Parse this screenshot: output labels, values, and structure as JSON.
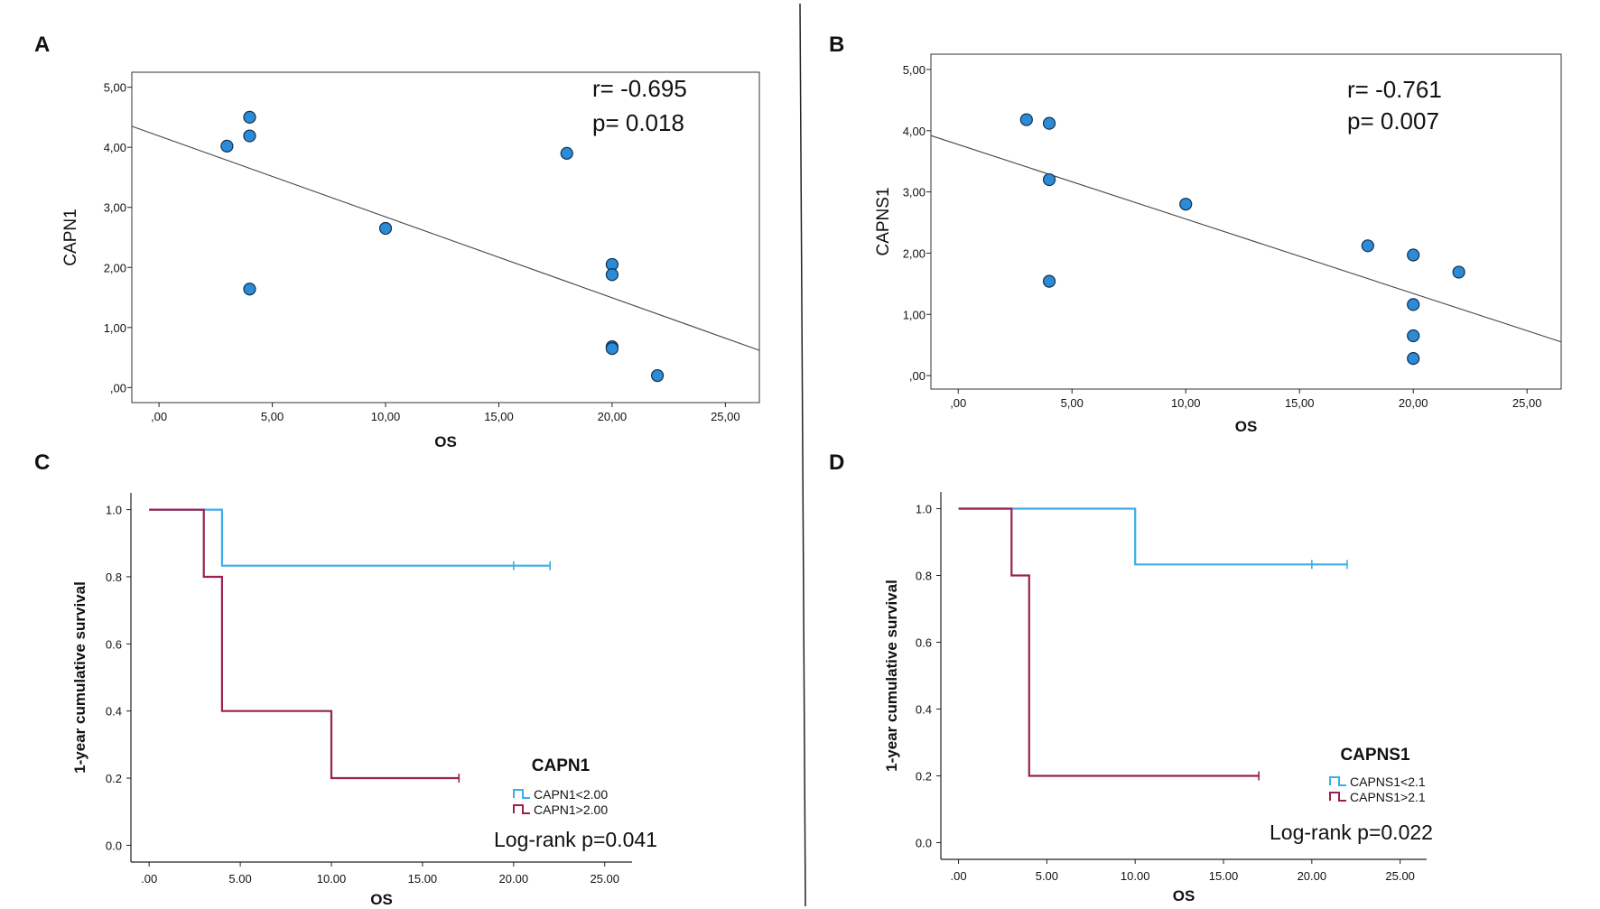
{
  "chart_data": [
    {
      "type": "scatter",
      "panel": "A",
      "xlabel": "OS",
      "ylabel": "CAPN1",
      "xticks": [
        ",00",
        "5,00",
        "10,00",
        "15,00",
        "20,00",
        "25,00"
      ],
      "yticks": [
        ",00",
        "1,00",
        "2,00",
        "3,00",
        "4,00",
        "5,00"
      ],
      "points": [
        [
          3,
          4.02
        ],
        [
          4,
          4.5
        ],
        [
          4,
          4.19
        ],
        [
          4,
          1.64
        ],
        [
          10,
          2.65
        ],
        [
          18,
          3.9
        ],
        [
          20,
          2.05
        ],
        [
          20,
          1.88
        ],
        [
          20,
          0.68
        ],
        [
          20,
          0.65
        ],
        [
          22,
          0.2
        ]
      ],
      "fit_line": [
        [
          -1.2,
          4.35
        ],
        [
          26.5,
          0.62
        ]
      ],
      "stats": {
        "r": "r= -0.695",
        "p": "p= 0.018"
      }
    },
    {
      "type": "scatter",
      "panel": "B",
      "xlabel": "OS",
      "ylabel": "CAPNS1",
      "xticks": [
        ",00",
        "5,00",
        "10,00",
        "15,00",
        "20,00",
        "25,00"
      ],
      "yticks": [
        ",00",
        "1,00",
        "2,00",
        "3,00",
        "4,00",
        "5,00"
      ],
      "points": [
        [
          3,
          4.18
        ],
        [
          4,
          4.12
        ],
        [
          4,
          3.2
        ],
        [
          4,
          1.54
        ],
        [
          10,
          2.8
        ],
        [
          18,
          2.12
        ],
        [
          20,
          1.97
        ],
        [
          22,
          1.69
        ],
        [
          20,
          1.16
        ],
        [
          20,
          0.65
        ],
        [
          20,
          0.28
        ]
      ],
      "fit_line": [
        [
          -1.2,
          3.92
        ],
        [
          26.5,
          0.55
        ]
      ],
      "stats": {
        "r": "r= -0.761",
        "p": "p= 0.007"
      }
    },
    {
      "type": "line",
      "subtype": "kaplan-meier",
      "panel": "C",
      "xlabel": "OS",
      "ylabel": "1-year cumulative survival",
      "xticks": [
        ".00",
        "5.00",
        "10.00",
        "15.00",
        "20.00",
        "25.00"
      ],
      "yticks": [
        "0.0",
        "0.2",
        "0.4",
        "0.6",
        "0.8",
        "1.0"
      ],
      "legend_title": "CAPN1",
      "series": [
        {
          "name": "CAPN1<2.00",
          "color": "#3aaee8",
          "steps": [
            [
              0,
              1.0
            ],
            [
              4,
              1.0
            ],
            [
              4,
              0.833
            ],
            [
              22,
              0.833
            ]
          ],
          "censored": [
            [
              20,
              0.833
            ],
            [
              22,
              0.833
            ]
          ]
        },
        {
          "name": "CAPN1>2.00",
          "color": "#99204f",
          "steps": [
            [
              0,
              1.0
            ],
            [
              3,
              1.0
            ],
            [
              3,
              0.8
            ],
            [
              4,
              0.8
            ],
            [
              4,
              0.4
            ],
            [
              10,
              0.4
            ],
            [
              10,
              0.2
            ],
            [
              17,
              0.2
            ]
          ],
          "censored": [
            [
              17,
              0.2
            ]
          ]
        }
      ],
      "annotation": "Log-rank p=0.041"
    },
    {
      "type": "line",
      "subtype": "kaplan-meier",
      "panel": "D",
      "xlabel": "OS",
      "ylabel": "1-year cumulative survival",
      "xticks": [
        ".00",
        "5.00",
        "10.00",
        "15.00",
        "20.00",
        "25.00"
      ],
      "yticks": [
        "0.0",
        "0.2",
        "0.4",
        "0.6",
        "0.8",
        "1.0"
      ],
      "legend_title": "CAPNS1",
      "series": [
        {
          "name": "CAPNS1<2.1",
          "color": "#3aaee8",
          "steps": [
            [
              0,
              1.0
            ],
            [
              10,
              1.0
            ],
            [
              10,
              0.833
            ],
            [
              22,
              0.833
            ]
          ],
          "censored": [
            [
              20,
              0.833
            ],
            [
              22,
              0.833
            ]
          ]
        },
        {
          "name": "CAPNS1>2.1",
          "color": "#99204f",
          "steps": [
            [
              0,
              1.0
            ],
            [
              3,
              1.0
            ],
            [
              3,
              0.8
            ],
            [
              4,
              0.8
            ],
            [
              4,
              0.2
            ],
            [
              17,
              0.2
            ]
          ],
          "censored": [
            [
              17,
              0.2
            ]
          ]
        }
      ],
      "annotation": "Log-rank p=0.022"
    }
  ]
}
